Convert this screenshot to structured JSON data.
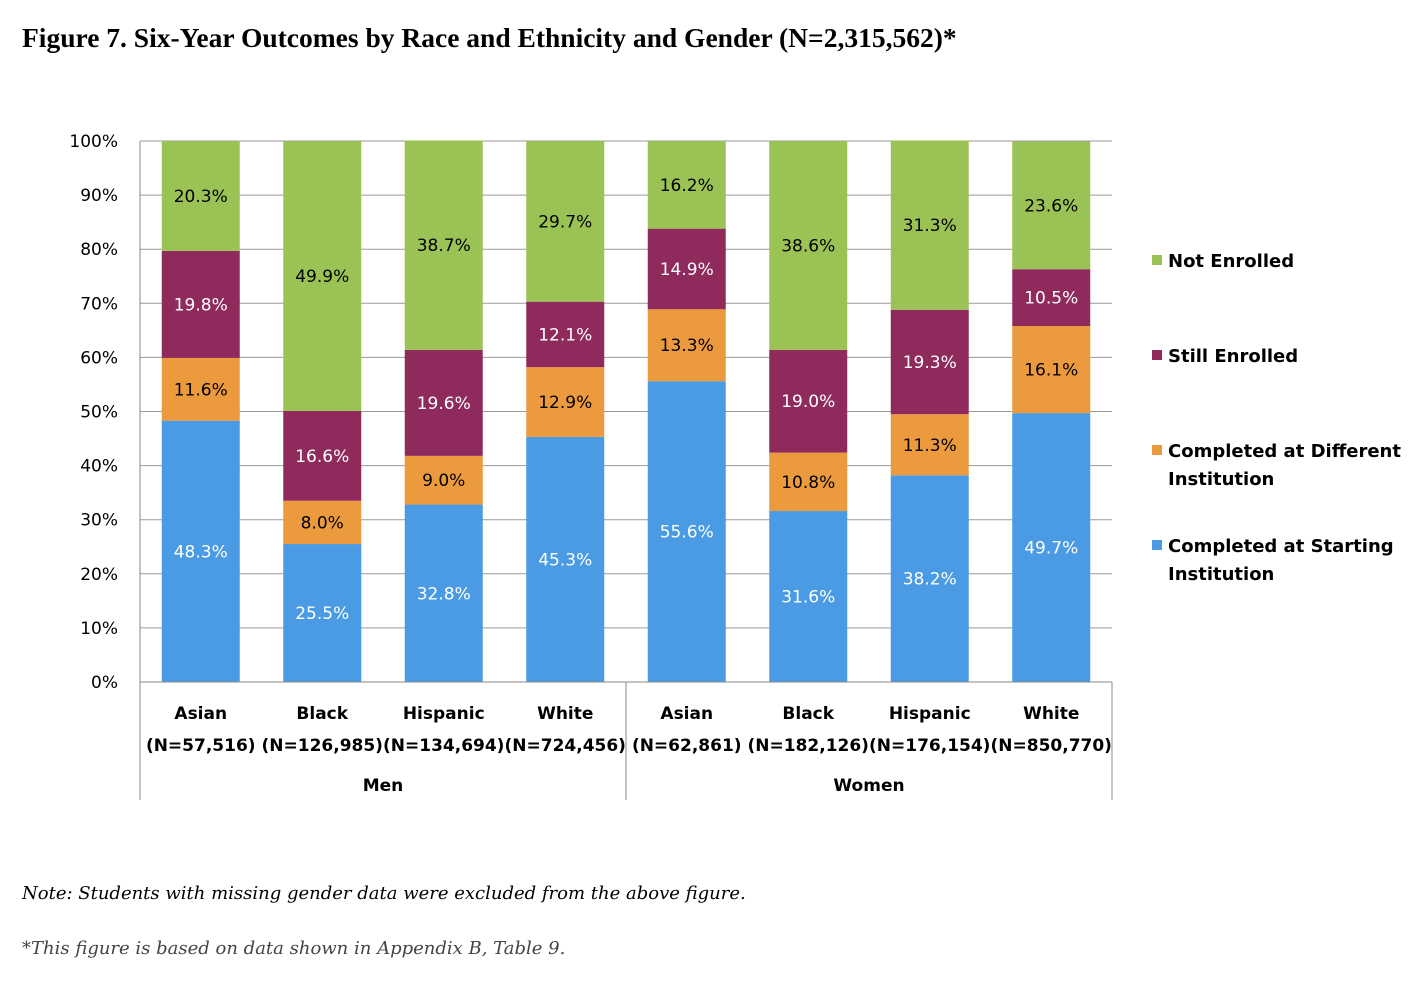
{
  "title": "Figure 7. Six-Year Outcomes by Race and Ethnicity and Gender (N=2,315,562)*",
  "note": "Note: Students with missing gender data were excluded from the above figure.",
  "source_note": "*This figure is based on data shown in Appendix B, Table 9.",
  "chart_data": {
    "type": "bar",
    "stacked": true,
    "ylim": [
      0,
      100
    ],
    "y_ticks": [
      "0%",
      "10%",
      "20%",
      "30%",
      "40%",
      "50%",
      "60%",
      "70%",
      "80%",
      "90%",
      "100%"
    ],
    "grid": true,
    "legend_position": "right",
    "categories": [
      {
        "race": "Asian",
        "n": "(N=57,516)",
        "group": "Men"
      },
      {
        "race": "Black",
        "n": "(N=126,985)",
        "group": "Men"
      },
      {
        "race": "Hispanic",
        "n": "(N=134,694)",
        "group": "Men"
      },
      {
        "race": "White",
        "n": "(N=724,456)",
        "group": "Men"
      },
      {
        "race": "Asian",
        "n": "(N=62,861)",
        "group": "Women"
      },
      {
        "race": "Black",
        "n": "(N=182,126)",
        "group": "Women"
      },
      {
        "race": "Hispanic",
        "n": "(N=176,154)",
        "group": "Women"
      },
      {
        "race": "White",
        "n": "(N=850,770)",
        "group": "Women"
      }
    ],
    "groups": [
      "Men",
      "Women"
    ],
    "series": [
      {
        "name": "Completed at Starting Institution",
        "legend_lines": [
          "Completed at Starting",
          "Institution"
        ],
        "color": "#4a9be3",
        "label_color": "#ffffff",
        "values": [
          48.3,
          25.5,
          32.8,
          45.3,
          55.6,
          31.6,
          38.2,
          49.7
        ],
        "labels": [
          "48.3%",
          "25.5%",
          "32.8%",
          "45.3%",
          "55.6%",
          "31.6%",
          "38.2%",
          "49.7%"
        ]
      },
      {
        "name": "Completed at Different Institution",
        "legend_lines": [
          "Completed at Different",
          "Institution"
        ],
        "color": "#ec9a3e",
        "label_color": "#000000",
        "values": [
          11.6,
          8.0,
          9.0,
          12.9,
          13.3,
          10.8,
          11.3,
          16.1
        ],
        "labels": [
          "11.6%",
          "8.0%",
          "9.0%",
          "12.9%",
          "13.3%",
          "10.8%",
          "11.3%",
          "16.1%"
        ]
      },
      {
        "name": "Still Enrolled",
        "legend_lines": [
          "Still Enrolled"
        ],
        "color": "#8f2b5c",
        "label_color": "#ffffff",
        "values": [
          19.8,
          16.6,
          19.6,
          12.1,
          14.9,
          19.0,
          19.3,
          10.5
        ],
        "labels": [
          "19.8%",
          "16.6%",
          "19.6%",
          "12.1%",
          "14.9%",
          "19.0%",
          "19.3%",
          "10.5%"
        ]
      },
      {
        "name": "Not Enrolled",
        "legend_lines": [
          "Not Enrolled"
        ],
        "color": "#9bc255",
        "label_color": "#000000",
        "values": [
          20.3,
          49.9,
          38.7,
          29.7,
          16.2,
          38.6,
          31.3,
          23.6
        ],
        "labels": [
          "20.3%",
          "49.9%",
          "38.7%",
          "29.7%",
          "16.2%",
          "38.6%",
          "31.3%",
          "23.6%"
        ]
      }
    ]
  }
}
